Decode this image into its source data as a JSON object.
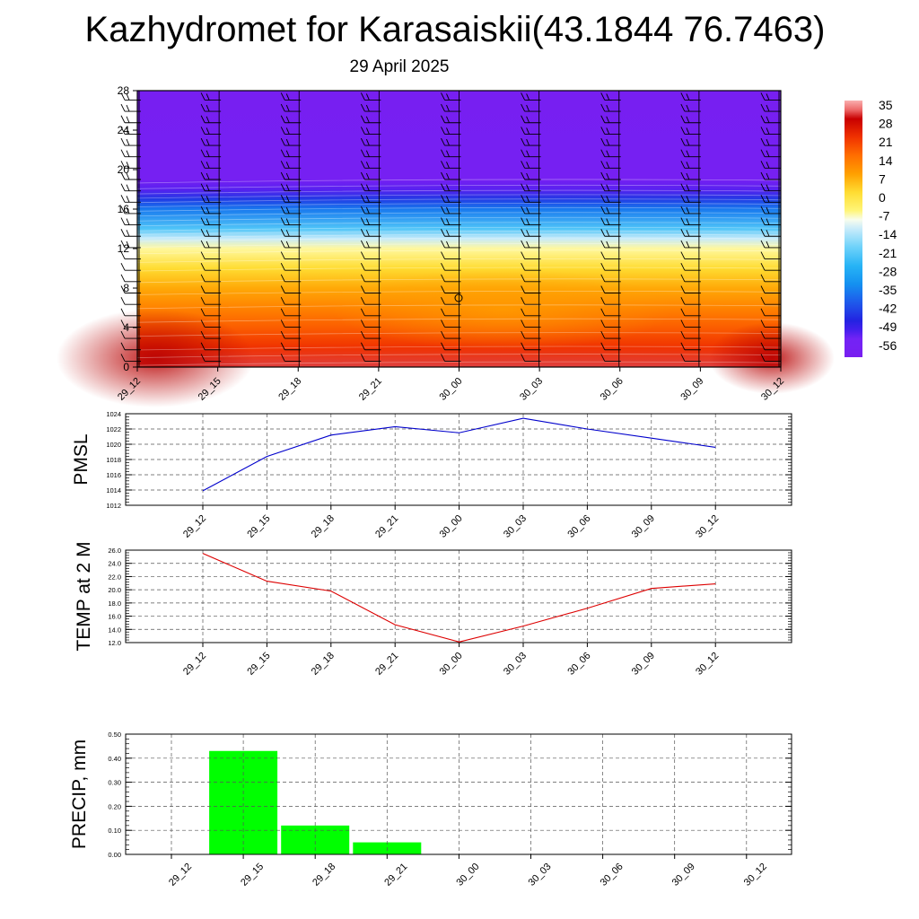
{
  "title": "Kazhydromet for Karasaiskii(43.1844 76.7463)",
  "subtitle": "29 April 2025",
  "time_labels": [
    "29_12",
    "29_15",
    "29_18",
    "29_21",
    "30_00",
    "30_03",
    "30_06",
    "30_09",
    "30_12"
  ],
  "colors": {
    "pmsl_line": "#0000cc",
    "temp_line": "#dd0000",
    "precip_bar": "#00ff00",
    "grid": "#555555"
  },
  "chart_data": [
    {
      "type": "heatmap",
      "title": "Kazhydromet for Karasaiskii(43.1844 76.7463)",
      "subtitle": "29 April 2025",
      "categories": [
        "29_12",
        "29_15",
        "29_18",
        "29_21",
        "30_00",
        "30_03",
        "30_06",
        "30_09",
        "30_12"
      ],
      "y_ticks": [
        0,
        4,
        8,
        12,
        16,
        20,
        24,
        28
      ],
      "ylim": [
        0,
        28
      ],
      "temperature_by_height": [
        {
          "height": 0,
          "value": 30
        },
        {
          "height": 2,
          "value": 21
        },
        {
          "height": 4,
          "value": 16
        },
        {
          "height": 6,
          "value": 11
        },
        {
          "height": 8,
          "value": 6
        },
        {
          "height": 10,
          "value": 0
        },
        {
          "height": 12,
          "value": -8
        },
        {
          "height": 13,
          "value": -14
        },
        {
          "height": 14,
          "value": -24
        },
        {
          "height": 16,
          "value": -38
        },
        {
          "height": 17,
          "value": -46
        },
        {
          "height": 18,
          "value": -54
        },
        {
          "height": 19,
          "value": -60
        },
        {
          "height": 28,
          "value": -62
        }
      ],
      "colorbar_labels": [
        "35",
        "28",
        "21",
        "14",
        "7",
        "0",
        "-7",
        "-14",
        "-21",
        "-28",
        "-35",
        "-42",
        "-49",
        "-56"
      ],
      "colorbar_values": [
        35,
        28,
        21,
        14,
        7,
        0,
        -7,
        -14,
        -21,
        -28,
        -35,
        -42,
        -49,
        -56
      ]
    },
    {
      "type": "line",
      "ylabel": "PMSL",
      "categories": [
        "29_12",
        "29_15",
        "29_18",
        "29_21",
        "30_00",
        "30_03",
        "30_06",
        "30_09",
        "30_12"
      ],
      "series": [
        {
          "values": [
            1013.9,
            1018.4,
            1021.2,
            1022.3,
            1021.5,
            1023.4,
            1022.0,
            1020.8,
            1019.6
          ]
        }
      ],
      "ylim": [
        1012,
        1024
      ],
      "y_ticks": [
        1012,
        1014,
        1016,
        1018,
        1020,
        1022,
        1024
      ],
      "y_tick_labels": [
        "1012",
        "1014",
        "1016",
        "1018",
        "1020",
        "1022",
        "1024"
      ],
      "grid": true
    },
    {
      "type": "line",
      "ylabel": "TEMP at 2 M",
      "categories": [
        "29_12",
        "29_15",
        "29_18",
        "29_21",
        "30_00",
        "30_03",
        "30_06",
        "30_09",
        "30_12"
      ],
      "series": [
        {
          "values": [
            25.5,
            21.3,
            19.8,
            14.7,
            12.1,
            14.5,
            17.2,
            20.2,
            20.9
          ]
        }
      ],
      "ylim": [
        12,
        26
      ],
      "y_ticks": [
        12,
        14,
        16,
        18,
        20,
        22,
        24,
        26
      ],
      "y_tick_labels": [
        "12.0",
        "14.0",
        "16.0",
        "18.0",
        "20.0",
        "22.0",
        "24.0",
        "26.0"
      ],
      "grid": true
    },
    {
      "type": "bar",
      "ylabel": "PRECIP, mm",
      "categories": [
        "29_12",
        "29_15",
        "29_18",
        "29_21",
        "30_00",
        "30_03",
        "30_06",
        "30_09",
        "30_12"
      ],
      "values": [
        0,
        0.43,
        0.12,
        0.05,
        0,
        0,
        0,
        0,
        0
      ],
      "ylim": [
        0,
        0.5
      ],
      "y_ticks": [
        0,
        0.1,
        0.2,
        0.3,
        0.4,
        0.5
      ],
      "y_tick_labels": [
        "0.00",
        "0.10",
        "0.20",
        "0.30",
        "0.40",
        "0.50"
      ],
      "grid": true
    }
  ]
}
